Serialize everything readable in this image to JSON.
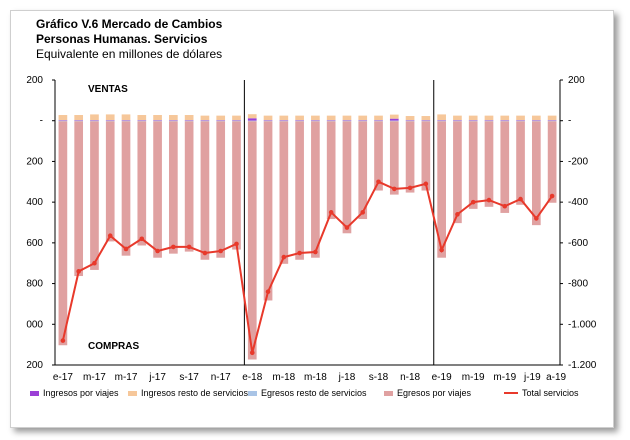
{
  "chart_data": {
    "type": "bar",
    "title": "Gráfico V.6 Mercado de Cambios",
    "subtitle": "Personas Humanas. Servicios",
    "units": "Equivalente en millones de dólares",
    "annotations": {
      "top": "VENTAS",
      "bottom": "COMPRAS"
    },
    "left_tick_labels": [
      "200",
      "-",
      "200",
      "400",
      "600",
      "800",
      "000",
      "200"
    ],
    "right_tick_labels": [
      "200",
      "-",
      "-200",
      "-400",
      "-600",
      "-800",
      "-1.000",
      "-1.200"
    ],
    "ylim": [
      -1200,
      200
    ],
    "xtick_labels": [
      "e-17",
      "m-17",
      "m-17",
      "j-17",
      "s-17",
      "n-17",
      "e-18",
      "m-18",
      "m-18",
      "j-18",
      "s-18",
      "n-18",
      "e-19",
      "m-19",
      "m-19",
      "j-19",
      "a-19"
    ],
    "categories": [
      "e-17",
      "f-17",
      "m-17",
      "a-17",
      "m-17",
      "j-17",
      "j-17",
      "a-17",
      "s-17",
      "o-17",
      "n-17",
      "d-17",
      "e-18",
      "f-18",
      "m-18",
      "a-18",
      "m-18",
      "j-18",
      "j-18",
      "a-18",
      "s-18",
      "o-18",
      "n-18",
      "d-18",
      "e-19",
      "f-19",
      "m-19",
      "a-19",
      "m-19",
      "j-19",
      "j-19",
      "a-19"
    ],
    "series": [
      {
        "name": "Ingresos por viajes",
        "color": "#9b3fd6",
        "kind": "bar",
        "values": [
          3,
          3,
          3,
          3,
          3,
          3,
          3,
          3,
          3,
          3,
          3,
          3,
          12,
          3,
          3,
          3,
          3,
          3,
          3,
          3,
          3,
          10,
          3,
          3,
          3,
          3,
          3,
          3,
          3,
          3,
          3,
          3
        ]
      },
      {
        "name": "Ingresos resto de servicios",
        "color": "#f6c79a",
        "kind": "bar",
        "values": [
          25,
          25,
          28,
          28,
          28,
          25,
          25,
          25,
          25,
          22,
          22,
          22,
          20,
          22,
          22,
          22,
          22,
          22,
          22,
          22,
          22,
          20,
          20,
          20,
          28,
          22,
          22,
          22,
          22,
          22,
          22,
          22
        ]
      },
      {
        "name": "Egresos resto de servicios",
        "color": "#a9c4e6",
        "kind": "bar",
        "values": [
          -3,
          -3,
          -3,
          -3,
          -3,
          -3,
          -3,
          -3,
          -3,
          -3,
          -3,
          -3,
          -3,
          -3,
          -3,
          -3,
          -3,
          -3,
          -3,
          -3,
          -3,
          -3,
          -3,
          -3,
          -3,
          -3,
          -3,
          -3,
          -3,
          -3,
          -3,
          -3
        ]
      },
      {
        "name": "Egresos por viajes",
        "color": "#e0a1a1",
        "kind": "bar",
        "values": [
          -1100,
          -760,
          -730,
          -590,
          -660,
          -610,
          -670,
          -650,
          -640,
          -680,
          -670,
          -630,
          -1170,
          -880,
          -700,
          -680,
          -670,
          -480,
          -550,
          -480,
          -340,
          -360,
          -350,
          -340,
          -670,
          -500,
          -430,
          -420,
          -450,
          -410,
          -510,
          -400
        ]
      },
      {
        "name": "Total servicios",
        "color": "#e8392b",
        "kind": "line",
        "values": [
          -1080,
          -740,
          -700,
          -565,
          -630,
          -580,
          -640,
          -620,
          -620,
          -650,
          -640,
          -605,
          -1140,
          -840,
          -670,
          -650,
          -645,
          -450,
          -525,
          -450,
          -300,
          -335,
          -330,
          -310,
          -635,
          -460,
          -400,
          -390,
          -420,
          -385,
          -480,
          -370
        ]
      }
    ],
    "legend_position": "bottom",
    "grid": false
  }
}
